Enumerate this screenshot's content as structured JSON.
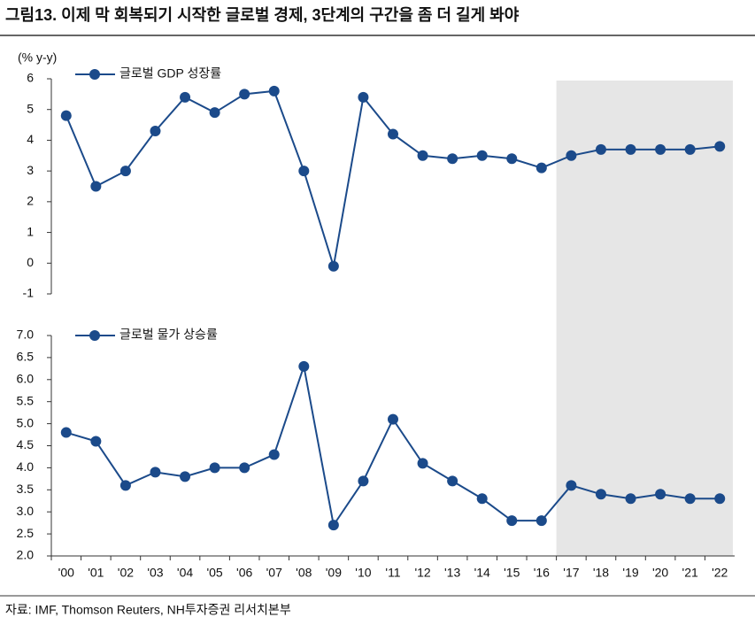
{
  "title": "그림13. 이제 막 회복되기 시작한 글로벌 경제, 3단계의 구간을 좀 더 길게 봐야",
  "source": "자료: IMF, Thomson Reuters, NH투자증권 리서치본부",
  "shade_from": "'17",
  "chart_data": [
    {
      "type": "line",
      "ylabel": "(% y-y)",
      "ylim": [
        -1,
        6
      ],
      "yticks": [
        -1,
        0,
        1,
        2,
        3,
        4,
        5,
        6
      ],
      "series": [
        {
          "name": "글로벌 GDP 성장률",
          "color": "#1b4a8a",
          "values": [
            4.8,
            2.5,
            3.0,
            4.3,
            5.4,
            4.9,
            5.5,
            5.6,
            3.0,
            -0.1,
            5.4,
            4.2,
            3.5,
            3.4,
            3.5,
            3.4,
            3.1,
            3.5,
            3.7,
            3.7,
            3.7,
            3.7,
            3.8
          ]
        }
      ]
    },
    {
      "type": "line",
      "ylim": [
        2,
        7
      ],
      "yticks": [
        {
          "value": 2,
          "label": "2.0"
        },
        2.5,
        {
          "value": 3,
          "label": "3.0"
        },
        3.5,
        {
          "value": 4,
          "label": "4.0"
        },
        4.5,
        {
          "value": 5,
          "label": "5.0"
        },
        5.5,
        {
          "value": 6,
          "label": "6.0"
        },
        6.5,
        {
          "value": 7,
          "label": "7.0"
        }
      ],
      "categories": [
        "'00",
        "'01",
        "'02",
        "'03",
        "'04",
        "'05",
        "'06",
        "'07",
        "'08",
        "'09",
        "'10",
        "'11",
        "'12",
        "'13",
        "'14",
        "'15",
        "'16",
        "'17",
        "'18",
        "'19",
        "'20",
        "'21",
        "'22"
      ],
      "series": [
        {
          "name": "글로벌 물가 상승률",
          "color": "#1b4a8a",
          "values": [
            4.8,
            4.6,
            3.6,
            3.9,
            3.8,
            4.0,
            4.0,
            4.3,
            6.3,
            2.7,
            3.7,
            5.1,
            4.1,
            3.7,
            3.3,
            2.8,
            2.8,
            3.6,
            3.4,
            3.3,
            3.4,
            3.3,
            3.3
          ]
        }
      ]
    }
  ]
}
